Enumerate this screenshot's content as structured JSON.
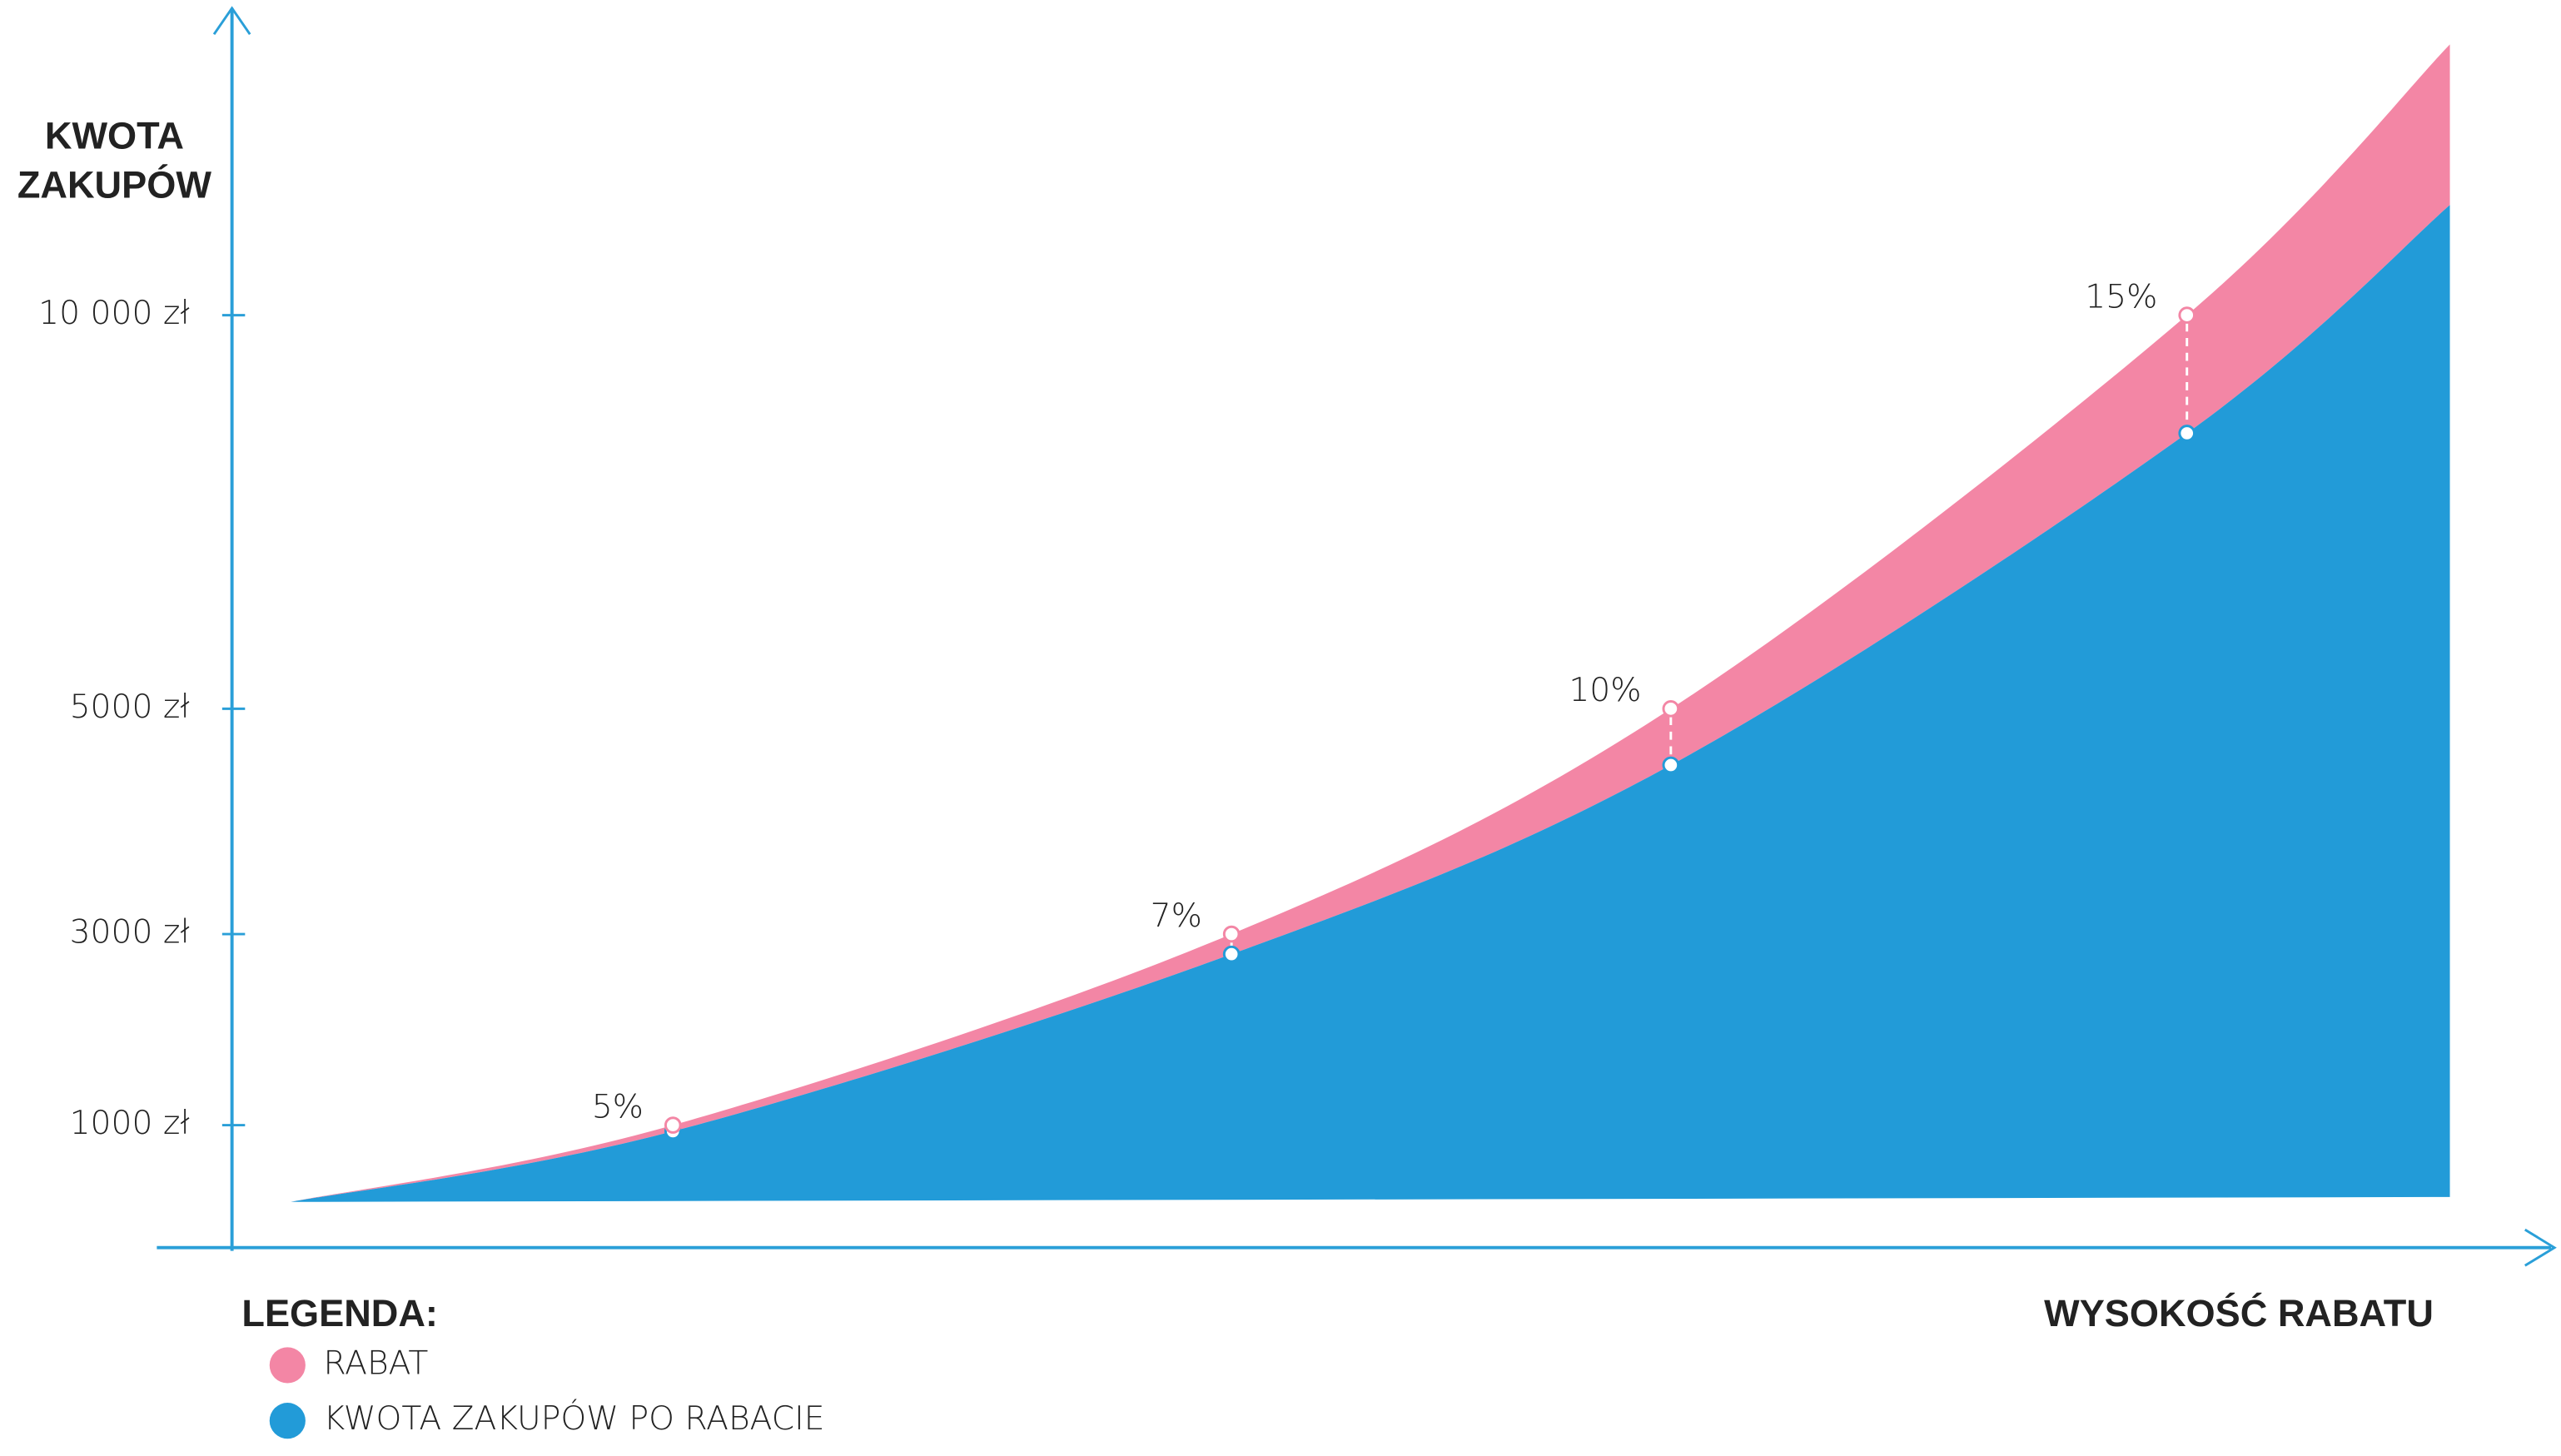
{
  "chart_data": {
    "type": "area",
    "ylabel": [
      "KWOTA",
      "ZAKUPÓW"
    ],
    "xlabel": "WYSOKOŚĆ RABATU",
    "legend_title": "LEGENDA:",
    "categories": [
      "5%",
      "7%",
      "10%",
      "15%"
    ],
    "stacked": true,
    "series": [
      {
        "name": "KWOTA ZAKUPÓW PO RABACIE",
        "color": "#229bd8",
        "values": [
          950,
          2790,
          4500,
          8500
        ]
      },
      {
        "name": "RABAT",
        "color": "#f386a5",
        "values": [
          50,
          210,
          500,
          1500
        ]
      }
    ],
    "ylim": [
      0,
      14000
    ],
    "yticks": [
      {
        "value": 1000,
        "label": "1000 zł"
      },
      {
        "value": 3000,
        "label": "3000 zł"
      },
      {
        "value": 5000,
        "label": "5000 zł"
      },
      {
        "value": 10000,
        "label": "10 000 zł"
      }
    ]
  }
}
